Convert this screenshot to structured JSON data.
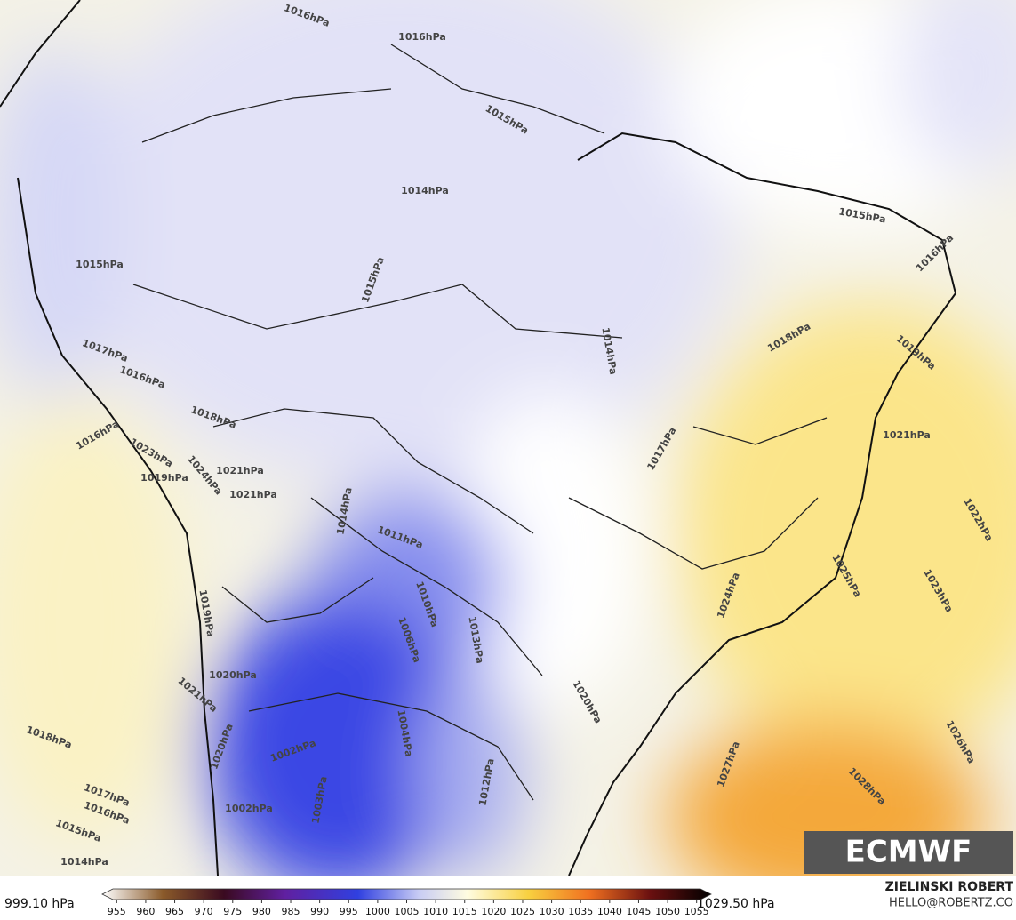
{
  "isobar_labels": [
    "1016hPa",
    "1016hPa",
    "1015hPa",
    "1014hPa",
    "1015hPa",
    "1015hPa",
    "1014hPa",
    "1015hPa",
    "1016hPa",
    "1018hPa",
    "1019hPa",
    "1021hPa",
    "1017hPa",
    "1022hPa",
    "1023hPa",
    "1025hPa",
    "1024hPa",
    "1026hPa",
    "1027hPa",
    "1028hPa",
    "1020hPa",
    "1017hPa",
    "1016hPa",
    "1018hPa",
    "1021hPa",
    "1021hPa",
    "1016hPa",
    "1019hPa",
    "1014hPa",
    "1011hPa",
    "1010hPa",
    "1013hPa",
    "1006hPa",
    "1004hPa",
    "1002hPa",
    "1002hPa",
    "1003hPa",
    "1012hPa",
    "1018hPa",
    "1017hPa",
    "1016hPa",
    "1015hPa",
    "1014hPa",
    "1020hPa",
    "1021hPa",
    "1020hPa",
    "1019hPa",
    "1024hPa",
    "1023hPa"
  ],
  "logo": "ECMWF",
  "colorbar": {
    "min_label": "999.10 hPa",
    "max_label": "1029.50 hPa",
    "lim": [
      952.5,
      1057.5
    ],
    "ticks": [
      955,
      960,
      965,
      970,
      975,
      980,
      985,
      990,
      995,
      1000,
      1005,
      1010,
      1015,
      1020,
      1025,
      1030,
      1035,
      1040,
      1045,
      1050,
      1055
    ]
  },
  "credits": {
    "author": "ZIELINSKI ROBERT",
    "contact": "HELLO@ROBERTZ.CO"
  }
}
